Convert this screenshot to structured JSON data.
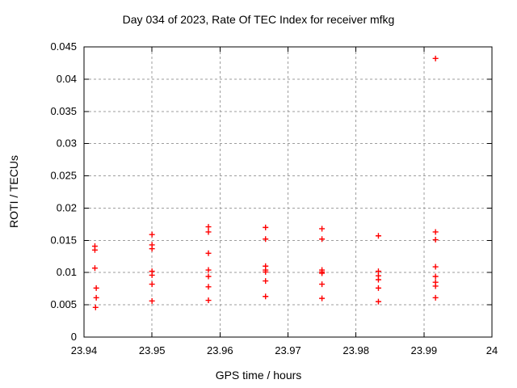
{
  "window": {
    "background": "#ffffff"
  },
  "chart_data": {
    "type": "scatter",
    "title": "Day 034 of 2023, Rate Of TEC Index for receiver mfkg",
    "xlabel": "GPS time / hours",
    "ylabel": "ROTI / TECUs",
    "xlim": [
      23.94,
      24
    ],
    "ylim": [
      0,
      0.045
    ],
    "xticks": [
      23.94,
      23.95,
      23.96,
      23.97,
      23.98,
      23.99,
      24
    ],
    "xtick_labels": [
      "23.94",
      "23.95",
      "23.96",
      "23.97",
      "23.98",
      "23.99",
      "24"
    ],
    "yticks": [
      0,
      0.005,
      0.01,
      0.015,
      0.02,
      0.025,
      0.03,
      0.035,
      0.04,
      0.045
    ],
    "ytick_labels": [
      "0",
      "0.005",
      "0.01",
      "0.015",
      "0.02",
      "0.025",
      "0.03",
      "0.035",
      "0.04",
      "0.045"
    ],
    "grid": true,
    "legend_position": "none",
    "colors": {
      "background": "#ffffff",
      "axis": "#000000",
      "grid": "#9e9e9e",
      "text": "#000000"
    },
    "series": [
      {
        "name": "ROTI",
        "marker": "plus",
        "color": "#ff0000",
        "points": [
          [
            23.9416,
            0.0141
          ],
          [
            23.9416,
            0.0135
          ],
          [
            23.9416,
            0.0107
          ],
          [
            23.9418,
            0.0076
          ],
          [
            23.9418,
            0.0061
          ],
          [
            23.9417,
            0.0046
          ],
          [
            23.95,
            0.0159
          ],
          [
            23.95,
            0.0143
          ],
          [
            23.95,
            0.0137
          ],
          [
            23.95,
            0.0102
          ],
          [
            23.95,
            0.0096
          ],
          [
            23.95,
            0.0082
          ],
          [
            23.95,
            0.0056
          ],
          [
            23.9583,
            0.0171
          ],
          [
            23.9583,
            0.0163
          ],
          [
            23.9583,
            0.013
          ],
          [
            23.9583,
            0.0104
          ],
          [
            23.9583,
            0.0094
          ],
          [
            23.9583,
            0.0078
          ],
          [
            23.9583,
            0.0057
          ],
          [
            23.9667,
            0.017
          ],
          [
            23.9667,
            0.0152
          ],
          [
            23.9667,
            0.011
          ],
          [
            23.9667,
            0.0104
          ],
          [
            23.9667,
            0.0101
          ],
          [
            23.9667,
            0.0087
          ],
          [
            23.9667,
            0.0063
          ],
          [
            23.975,
            0.0168
          ],
          [
            23.975,
            0.0152
          ],
          [
            23.975,
            0.0104
          ],
          [
            23.975,
            0.0101
          ],
          [
            23.975,
            0.0099
          ],
          [
            23.975,
            0.0082
          ],
          [
            23.975,
            0.006
          ],
          [
            23.9833,
            0.0157
          ],
          [
            23.9833,
            0.0102
          ],
          [
            23.9833,
            0.0095
          ],
          [
            23.9833,
            0.0089
          ],
          [
            23.9833,
            0.0076
          ],
          [
            23.9833,
            0.0055
          ],
          [
            23.9917,
            0.0432
          ],
          [
            23.9917,
            0.0163
          ],
          [
            23.9917,
            0.0151
          ],
          [
            23.9917,
            0.0109
          ],
          [
            23.9917,
            0.0094
          ],
          [
            23.9917,
            0.0085
          ],
          [
            23.9917,
            0.0079
          ],
          [
            23.9917,
            0.0061
          ]
        ]
      }
    ]
  }
}
